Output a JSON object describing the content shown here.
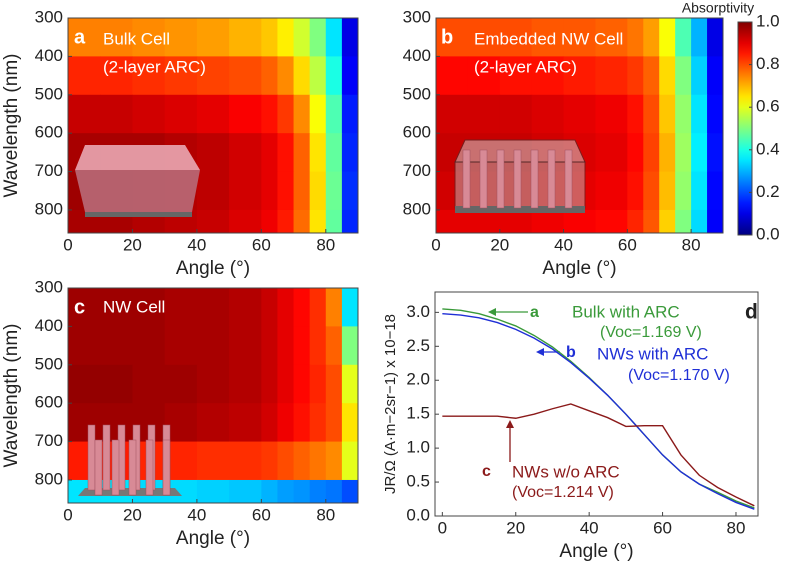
{
  "chart_data": [
    {
      "type": "heatmap",
      "panel": "a",
      "title": "Bulk Cell",
      "subtitle": "(2-layer ARC)",
      "xlabel": "Angle (°)",
      "ylabel": "Wavelength (nm)",
      "x_edges": [
        0,
        10,
        20,
        30,
        40,
        50,
        60,
        65,
        70,
        75,
        80,
        85,
        90
      ],
      "y_edges": [
        300,
        400,
        500,
        600,
        700,
        800,
        860
      ],
      "xlim": [
        0,
        90
      ],
      "ylim": [
        300,
        860
      ],
      "xticks": [
        0,
        20,
        40,
        60,
        80
      ],
      "yticks": [
        300,
        400,
        500,
        600,
        700,
        800
      ],
      "values": [
        [
          0.75,
          0.75,
          0.74,
          0.73,
          0.72,
          0.7,
          0.68,
          0.64,
          0.58,
          0.5,
          0.35,
          0.1
        ],
        [
          0.84,
          0.84,
          0.83,
          0.82,
          0.81,
          0.8,
          0.78,
          0.74,
          0.66,
          0.56,
          0.4,
          0.12
        ],
        [
          0.93,
          0.93,
          0.92,
          0.91,
          0.9,
          0.88,
          0.86,
          0.82,
          0.74,
          0.62,
          0.45,
          0.15
        ],
        [
          0.96,
          0.96,
          0.96,
          0.95,
          0.94,
          0.92,
          0.9,
          0.86,
          0.78,
          0.65,
          0.47,
          0.16
        ],
        [
          0.97,
          0.97,
          0.96,
          0.95,
          0.94,
          0.92,
          0.9,
          0.86,
          0.78,
          0.66,
          0.48,
          0.17
        ],
        [
          0.96,
          0.96,
          0.95,
          0.94,
          0.93,
          0.91,
          0.89,
          0.85,
          0.77,
          0.65,
          0.47,
          0.16
        ]
      ]
    },
    {
      "type": "heatmap",
      "panel": "b",
      "title": "Embedded NW Cell",
      "subtitle": "(2-layer ARC)",
      "xlabel": "Angle (°)",
      "x_edges": [
        0,
        10,
        20,
        30,
        40,
        50,
        60,
        65,
        70,
        75,
        80,
        85,
        90
      ],
      "y_edges": [
        300,
        400,
        500,
        600,
        700,
        800,
        860
      ],
      "xlim": [
        0,
        90
      ],
      "ylim": [
        300,
        860
      ],
      "xticks": [
        0,
        20,
        40,
        60,
        80
      ],
      "yticks": [
        300,
        400,
        500,
        600,
        700,
        800
      ],
      "values": [
        [
          0.8,
          0.8,
          0.8,
          0.79,
          0.79,
          0.78,
          0.76,
          0.72,
          0.62,
          0.45,
          0.3,
          0.1
        ],
        [
          0.87,
          0.87,
          0.86,
          0.86,
          0.85,
          0.84,
          0.82,
          0.78,
          0.66,
          0.5,
          0.33,
          0.12
        ],
        [
          0.92,
          0.92,
          0.92,
          0.91,
          0.9,
          0.89,
          0.86,
          0.8,
          0.68,
          0.52,
          0.35,
          0.13
        ],
        [
          0.93,
          0.93,
          0.93,
          0.92,
          0.91,
          0.9,
          0.87,
          0.81,
          0.7,
          0.53,
          0.36,
          0.14
        ],
        [
          0.92,
          0.92,
          0.92,
          0.91,
          0.9,
          0.89,
          0.86,
          0.8,
          0.69,
          0.52,
          0.35,
          0.13
        ],
        [
          0.9,
          0.9,
          0.9,
          0.89,
          0.88,
          0.87,
          0.84,
          0.79,
          0.67,
          0.5,
          0.34,
          0.12
        ]
      ],
      "colorbar": {
        "title": "Absorptivity",
        "lim": [
          0,
          1
        ],
        "ticks": [
          {
            "value": 0,
            "label": "0.0"
          },
          0.2,
          0.4,
          0.6,
          0.8,
          {
            "value": 1,
            "label": "1.0"
          }
        ]
      }
    },
    {
      "type": "heatmap",
      "panel": "c",
      "title": "NW Cell",
      "xlabel": "Angle (°)",
      "ylabel": "Wavelength (nm)",
      "x_edges": [
        0,
        10,
        20,
        30,
        40,
        50,
        60,
        65,
        70,
        75,
        80,
        85,
        90
      ],
      "y_edges": [
        300,
        400,
        500,
        600,
        700,
        800,
        860
      ],
      "xlim": [
        0,
        90
      ],
      "ylim": [
        300,
        860
      ],
      "xticks": [
        0,
        20,
        40,
        60,
        80
      ],
      "yticks": [
        300,
        400,
        500,
        600,
        700,
        800
      ],
      "values": [
        [
          0.97,
          0.97,
          0.97,
          0.96,
          0.96,
          0.95,
          0.93,
          0.9,
          0.87,
          0.83,
          0.75,
          0.35
        ],
        [
          0.97,
          0.97,
          0.97,
          0.96,
          0.96,
          0.95,
          0.93,
          0.9,
          0.87,
          0.83,
          0.78,
          0.5
        ],
        [
          0.98,
          0.98,
          0.97,
          0.97,
          0.96,
          0.95,
          0.93,
          0.9,
          0.87,
          0.84,
          0.8,
          0.6
        ],
        [
          0.97,
          0.97,
          0.97,
          0.96,
          0.95,
          0.94,
          0.92,
          0.89,
          0.86,
          0.83,
          0.8,
          0.65
        ],
        [
          0.85,
          0.85,
          0.84,
          0.84,
          0.83,
          0.83,
          0.82,
          0.8,
          0.78,
          0.76,
          0.74,
          0.6
        ],
        [
          0.35,
          0.35,
          0.34,
          0.34,
          0.33,
          0.32,
          0.3,
          0.28,
          0.27,
          0.25,
          0.24,
          0.2
        ]
      ]
    },
    {
      "type": "line",
      "panel": "d",
      "xlabel": "Angle (°)",
      "ylabel": "JR/Ω (A·m−2sr−1) x 10−18",
      "x": [
        0,
        5,
        10,
        15,
        20,
        25,
        30,
        35,
        40,
        45,
        50,
        55,
        60,
        65,
        70,
        75,
        80,
        85
      ],
      "xlim": [
        -2,
        86
      ],
      "ylim": [
        0,
        3.3
      ],
      "xticks": [
        0,
        20,
        40,
        60,
        80
      ],
      "yticks": [
        {
          "value": 0,
          "label": "0.0"
        },
        0.5,
        {
          "value": 1,
          "label": "1.0"
        },
        1.5,
        {
          "value": 2,
          "label": "2.0"
        },
        2.5,
        {
          "value": 3,
          "label": "3.0"
        }
      ],
      "series": [
        {
          "name": "Bulk with ARC",
          "letter": "a",
          "note": "(Voc=1.169 V)",
          "color": "#3a9a3a",
          "values": [
            3.05,
            3.03,
            2.98,
            2.9,
            2.8,
            2.66,
            2.49,
            2.28,
            2.04,
            1.78,
            1.5,
            1.2,
            0.9,
            0.65,
            0.47,
            0.35,
            0.22,
            0.12
          ]
        },
        {
          "name": "NWs with ARC",
          "letter": "b",
          "note": "(Voc=1.170 V)",
          "color": "#1f2fd6",
          "values": [
            2.98,
            2.96,
            2.92,
            2.85,
            2.75,
            2.62,
            2.46,
            2.26,
            2.03,
            1.78,
            1.5,
            1.2,
            0.9,
            0.65,
            0.47,
            0.33,
            0.2,
            0.1
          ]
        },
        {
          "name": "NWs w/o ARC",
          "letter": "c",
          "note": "(Voc=1.214 V)",
          "color": "#8b1a1a",
          "values": [
            1.47,
            1.47,
            1.47,
            1.47,
            1.44,
            1.5,
            1.58,
            1.65,
            1.55,
            1.45,
            1.32,
            1.33,
            1.33,
            0.9,
            0.6,
            0.42,
            0.28,
            0.15
          ]
        }
      ]
    }
  ]
}
